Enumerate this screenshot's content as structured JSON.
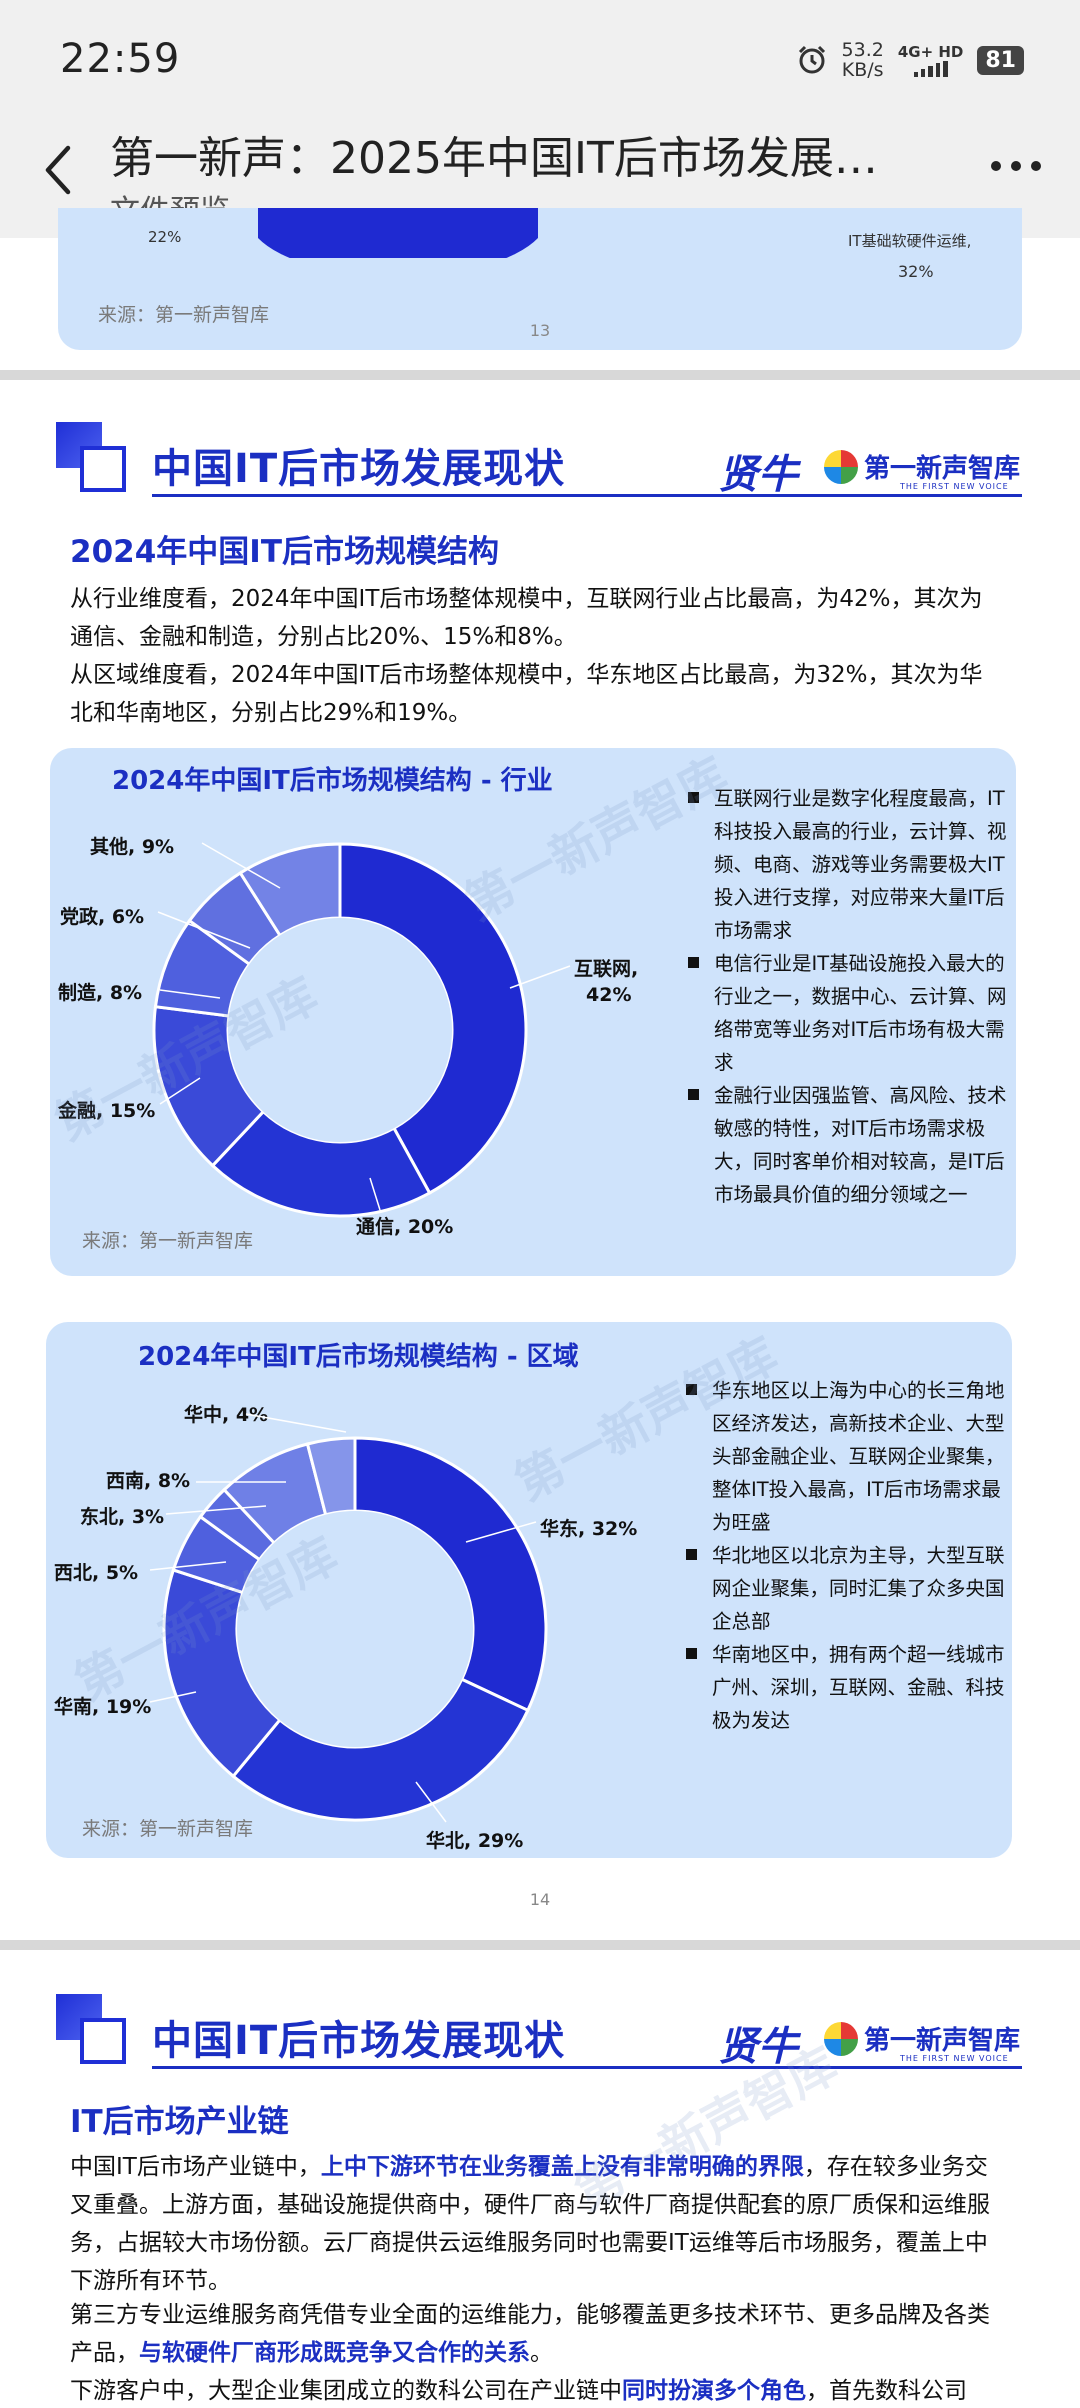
{
  "status_bar": {
    "time": "22:59",
    "speed_value": "53.2",
    "speed_unit": "KB/s",
    "network": "4G+ HD",
    "battery": "81"
  },
  "app_bar": {
    "title": "第一新声：2025年中国IT后市场发展…",
    "subtitle": "文件预览"
  },
  "page13": {
    "chart_label": "IT基础软硬件运维,",
    "chart_label_pct": "32%",
    "left_pct": "22%",
    "source": "来源：第一新声智库",
    "page_number": "13"
  },
  "page14": {
    "header_title": "中国IT后市场发展现状",
    "logo_mark": "贤牛",
    "logo_name": "第一新声智库",
    "logo_en": "THE FIRST NEW VOICE",
    "section_title": "2024年中国IT后市场规模结构",
    "paragraphs": [
      "从行业维度看，2024年中国IT后市场整体规模中，互联网行业占比最高，为42%，其次为通信、金融和制造，分别占比20%、15%和8%。",
      "从区域维度看，2024年中国IT后市场整体规模中，华东地区占比最高，为32%，其次为华北和华南地区，分别占比29%和19%。"
    ],
    "industry_card": {
      "title": "2024年中国IT后市场规模结构 - 行业",
      "bullets": [
        "互联网行业是数字化程度最高，IT科技投入最高的行业，云计算、视频、电商、游戏等业务需要极大IT投入进行支撑，对应带来大量IT后市场需求",
        "电信行业是IT基础设施投入最大的行业之一，数据中心、云计算、网络带宽等业务对IT后市场有极大需求",
        "金融行业因强监管、高风险、技术敏感的特性，对IT后市场需求极大，同时客单价相对较高，是IT后市场最具价值的细分领域之一"
      ],
      "source": "来源：第一新声智库",
      "labels": {
        "internet": "互联网,",
        "internet_pct": "42%",
        "telecom": "通信, 20%",
        "finance": "金融, 15%",
        "manufacturing": "制造, 8%",
        "government": "党政, 6%",
        "other": "其他, 9%"
      }
    },
    "region_card": {
      "title": "2024年中国IT后市场规模结构 - 区域",
      "bullets": [
        "华东地区以上海为中心的长三角地区经济发达，高新技术企业、大型头部金融企业、互联网企业聚集，整体IT投入最高，IT后市场需求最为旺盛",
        "华北地区以北京为主导，大型互联网企业聚集，同时汇集了众多央国企总部",
        "华南地区中，拥有两个超一线城市广州、深圳，互联网、金融、科技极为发达"
      ],
      "source": "来源：第一新声智库",
      "labels": {
        "east": "华东, 32%",
        "north": "华北, 29%",
        "south": "华南, 19%",
        "northwest": "西北, 5%",
        "northeast": "东北, 3%",
        "southwest": "西南, 8%",
        "central": "华中, 4%"
      }
    },
    "page_number": "14"
  },
  "page15": {
    "header_title": "中国IT后市场发展现状",
    "logo_mark": "贤牛",
    "logo_name": "第一新声智库",
    "logo_en": "THE FIRST NEW VOICE",
    "section_title": "IT后市场产业链",
    "p1_a": "中国IT后市场产业链中，",
    "p1_b": "上中下游环节在业务覆盖上没有非常明确的界限",
    "p1_c": "，存在较多业务交叉重叠。上游方面，基础设施提供商中，硬件厂商与软件厂商提供配套的原厂质保和运维服务，占据较大市场份额。云厂商提供云运维服务同时也需要IT运维等后市场服务，覆盖上中下游所有环节。",
    "p2_a": "第三方专业运维服务商凭借专业全面的运维能力，能够覆盖更多技术环节、更多品牌及各类产品，",
    "p2_b": "与软硬件厂商形成既竞争又合作的关系",
    "p2_c": "。",
    "p3_a": "下游客户中，大型企业集团成立的数科公司在产业链中",
    "p3_b": "同时扮演多个角色",
    "p3_c": "，首先数科公司"
  },
  "chart_data": [
    {
      "type": "pie",
      "title": "2024年中国IT后市场规模结构 - 行业",
      "categories": [
        "互联网",
        "通信",
        "金融",
        "制造",
        "党政",
        "其他"
      ],
      "values": [
        42,
        20,
        15,
        8,
        6,
        9
      ],
      "colors": [
        "#1f2ad1",
        "#2434d4",
        "#3a4ad8",
        "#4f60de",
        "#6070e0",
        "#7383e6"
      ]
    },
    {
      "type": "pie",
      "title": "2024年中国IT后市场规模结构 - 区域",
      "categories": [
        "华东",
        "华北",
        "华南",
        "西北",
        "东北",
        "西南",
        "华中"
      ],
      "values": [
        32,
        29,
        19,
        5,
        3,
        8,
        4
      ],
      "colors": [
        "#1f2ad1",
        "#2434d4",
        "#3a4ad8",
        "#4f60de",
        "#5a6be0",
        "#6f80e6",
        "#8595ea"
      ]
    }
  ]
}
